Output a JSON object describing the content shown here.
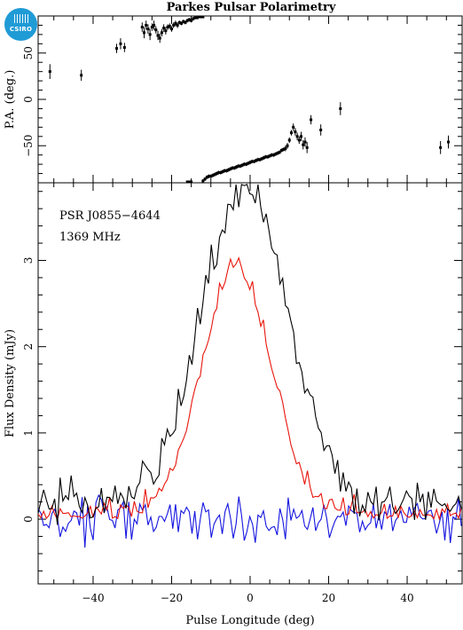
{
  "title": "Parkes Pulsar Polarimetry",
  "logo_text": "CSIRO",
  "colors": {
    "total": "#000000",
    "linear": "#e8150c",
    "circular": "#1414e0",
    "brand": "#1f9bd6"
  },
  "chart_data": [
    {
      "type": "scatter",
      "role": "position-angle",
      "ylabel": "P.A. (deg.)",
      "xlim": [
        -54,
        54
      ],
      "ylim": [
        -90,
        90
      ],
      "yticks": [
        -50,
        0,
        50
      ],
      "error_bars": true,
      "points_main": [
        {
          "x": -51,
          "y": 30,
          "e": 8
        },
        {
          "x": -43,
          "y": 26,
          "e": 6
        },
        {
          "x": -34,
          "y": 55,
          "e": 5
        },
        {
          "x": -33,
          "y": 60,
          "e": 6
        },
        {
          "x": -32,
          "y": 56,
          "e": 5
        },
        {
          "x": -27.5,
          "y": 78,
          "e": 5
        },
        {
          "x": -27,
          "y": 72,
          "e": 6
        },
        {
          "x": -26.5,
          "y": 80,
          "e": 5
        },
        {
          "x": -26,
          "y": 76,
          "e": 5
        },
        {
          "x": -25.5,
          "y": 70,
          "e": 6
        },
        {
          "x": -25,
          "y": 78,
          "e": 4
        },
        {
          "x": -24.5,
          "y": 80,
          "e": 5
        },
        {
          "x": -24,
          "y": 75,
          "e": 4
        },
        {
          "x": -23.5,
          "y": 69,
          "e": 5
        },
        {
          "x": -23,
          "y": 66,
          "e": 5
        },
        {
          "x": -22.5,
          "y": 72,
          "e": 4
        },
        {
          "x": -22,
          "y": 77,
          "e": 4
        },
        {
          "x": -21.5,
          "y": 74,
          "e": 4
        },
        {
          "x": -21,
          "y": 78,
          "e": 3
        },
        {
          "x": -20.5,
          "y": 79,
          "e": 3
        },
        {
          "x": -20,
          "y": 76,
          "e": 3
        },
        {
          "x": -19.5,
          "y": 80,
          "e": 3
        },
        {
          "x": -19,
          "y": 82,
          "e": 3
        },
        {
          "x": -18.5,
          "y": 80,
          "e": 3
        },
        {
          "x": -18,
          "y": 83,
          "e": 2
        },
        {
          "x": -17.5,
          "y": 82,
          "e": 2
        },
        {
          "x": -17,
          "y": 84,
          "e": 2
        },
        {
          "x": -16.5,
          "y": 83,
          "e": 2
        },
        {
          "x": -16,
          "y": 85,
          "e": 2
        },
        {
          "x": -15.5,
          "y": 86,
          "e": 2
        },
        {
          "x": -15,
          "y": 85,
          "e": 2
        },
        {
          "x": -14.5,
          "y": 87,
          "e": 2
        },
        {
          "x": -14,
          "y": 88,
          "e": 1
        },
        {
          "x": -13.5,
          "y": 88,
          "e": 1
        },
        {
          "x": -13,
          "y": 89,
          "e": 1
        },
        {
          "x": -12.5,
          "y": 89,
          "e": 1
        },
        {
          "x": -12,
          "y": 89,
          "e": 1
        },
        {
          "x": -16,
          "y": -89,
          "e": 1
        },
        {
          "x": -15.5,
          "y": -89,
          "e": 1
        },
        {
          "x": -15,
          "y": -89,
          "e": 1
        },
        {
          "x": -12,
          "y": -88,
          "e": 2
        },
        {
          "x": -11.5,
          "y": -86,
          "e": 2
        },
        {
          "x": -11,
          "y": -84,
          "e": 2
        },
        {
          "x": -10.5,
          "y": -83,
          "e": 2
        },
        {
          "x": -10,
          "y": -83,
          "e": 2
        },
        {
          "x": -9.5,
          "y": -82,
          "e": 2
        },
        {
          "x": -9,
          "y": -81,
          "e": 2
        },
        {
          "x": -8.5,
          "y": -80,
          "e": 2
        },
        {
          "x": -8,
          "y": -79,
          "e": 2
        },
        {
          "x": -7.5,
          "y": -79,
          "e": 2
        },
        {
          "x": -7,
          "y": -78,
          "e": 2
        },
        {
          "x": -6.5,
          "y": -77,
          "e": 2
        },
        {
          "x": -6,
          "y": -77,
          "e": 2
        },
        {
          "x": -5.5,
          "y": -76,
          "e": 2
        },
        {
          "x": -5,
          "y": -75,
          "e": 2
        },
        {
          "x": -4.5,
          "y": -74,
          "e": 2
        },
        {
          "x": -4,
          "y": -74,
          "e": 2
        },
        {
          "x": -3.5,
          "y": -73,
          "e": 2
        },
        {
          "x": -3,
          "y": -72,
          "e": 2
        },
        {
          "x": -2.5,
          "y": -72,
          "e": 2
        },
        {
          "x": -2,
          "y": -71,
          "e": 2
        },
        {
          "x": -1.5,
          "y": -70,
          "e": 2
        },
        {
          "x": -1,
          "y": -70,
          "e": 2
        },
        {
          "x": -0.5,
          "y": -69,
          "e": 2
        },
        {
          "x": 0,
          "y": -68,
          "e": 2
        },
        {
          "x": 0.5,
          "y": -67,
          "e": 2
        },
        {
          "x": 1,
          "y": -67,
          "e": 2
        },
        {
          "x": 1.5,
          "y": -66,
          "e": 2
        },
        {
          "x": 2,
          "y": -65,
          "e": 2
        },
        {
          "x": 2.5,
          "y": -65,
          "e": 2
        },
        {
          "x": 3,
          "y": -64,
          "e": 2
        },
        {
          "x": 3.5,
          "y": -63,
          "e": 2
        },
        {
          "x": 4,
          "y": -62,
          "e": 2
        },
        {
          "x": 4.5,
          "y": -62,
          "e": 2
        },
        {
          "x": 5,
          "y": -61,
          "e": 2
        },
        {
          "x": 5.5,
          "y": -60,
          "e": 2
        },
        {
          "x": 6,
          "y": -60,
          "e": 2
        },
        {
          "x": 6.5,
          "y": -59,
          "e": 2
        },
        {
          "x": 7,
          "y": -58,
          "e": 2
        },
        {
          "x": 7.5,
          "y": -57,
          "e": 2
        },
        {
          "x": 8,
          "y": -55,
          "e": 2
        },
        {
          "x": 8.5,
          "y": -54,
          "e": 2
        },
        {
          "x": 9,
          "y": -53,
          "e": 3
        },
        {
          "x": 9.5,
          "y": -50,
          "e": 3
        },
        {
          "x": 10,
          "y": -44,
          "e": 3
        },
        {
          "x": 10.5,
          "y": -36,
          "e": 3
        },
        {
          "x": 11,
          "y": -30,
          "e": 4
        },
        {
          "x": 11.5,
          "y": -35,
          "e": 4
        },
        {
          "x": 12,
          "y": -40,
          "e": 4
        },
        {
          "x": 12.5,
          "y": -44,
          "e": 4
        },
        {
          "x": 13,
          "y": -40,
          "e": 5
        },
        {
          "x": 13.5,
          "y": -49,
          "e": 5
        },
        {
          "x": 14,
          "y": -46,
          "e": 5
        },
        {
          "x": 14.5,
          "y": -52,
          "e": 6
        },
        {
          "x": 15.5,
          "y": -22,
          "e": 5
        },
        {
          "x": 18,
          "y": -33,
          "e": 6
        },
        {
          "x": 23,
          "y": -10,
          "e": 7
        },
        {
          "x": 48.5,
          "y": -52,
          "e": 7
        },
        {
          "x": 50.5,
          "y": -46,
          "e": 7
        }
      ]
    },
    {
      "type": "line",
      "role": "flux-profile",
      "xlabel": "Pulse Longitude (deg)",
      "ylabel": "Flux Density (mJy)",
      "xlim": [
        -54,
        54
      ],
      "ylim": [
        -0.75,
        3.9
      ],
      "xticks": [
        -40,
        -20,
        0,
        20,
        40
      ],
      "yticks": [
        0,
        1,
        2,
        3
      ],
      "annotations": [
        "PSR J0855−4644",
        "1369 MHz"
      ],
      "sample_step": 0.7,
      "envelope": {
        "total": {
          "peak": 3.7,
          "center": -1.5,
          "sigma": 11
        },
        "linear": {
          "peak": 2.85,
          "center": -3.5,
          "sigma": 8.8
        },
        "circular": {
          "level": 0.0
        }
      },
      "noise_rms_mJy": 0.16
    }
  ]
}
